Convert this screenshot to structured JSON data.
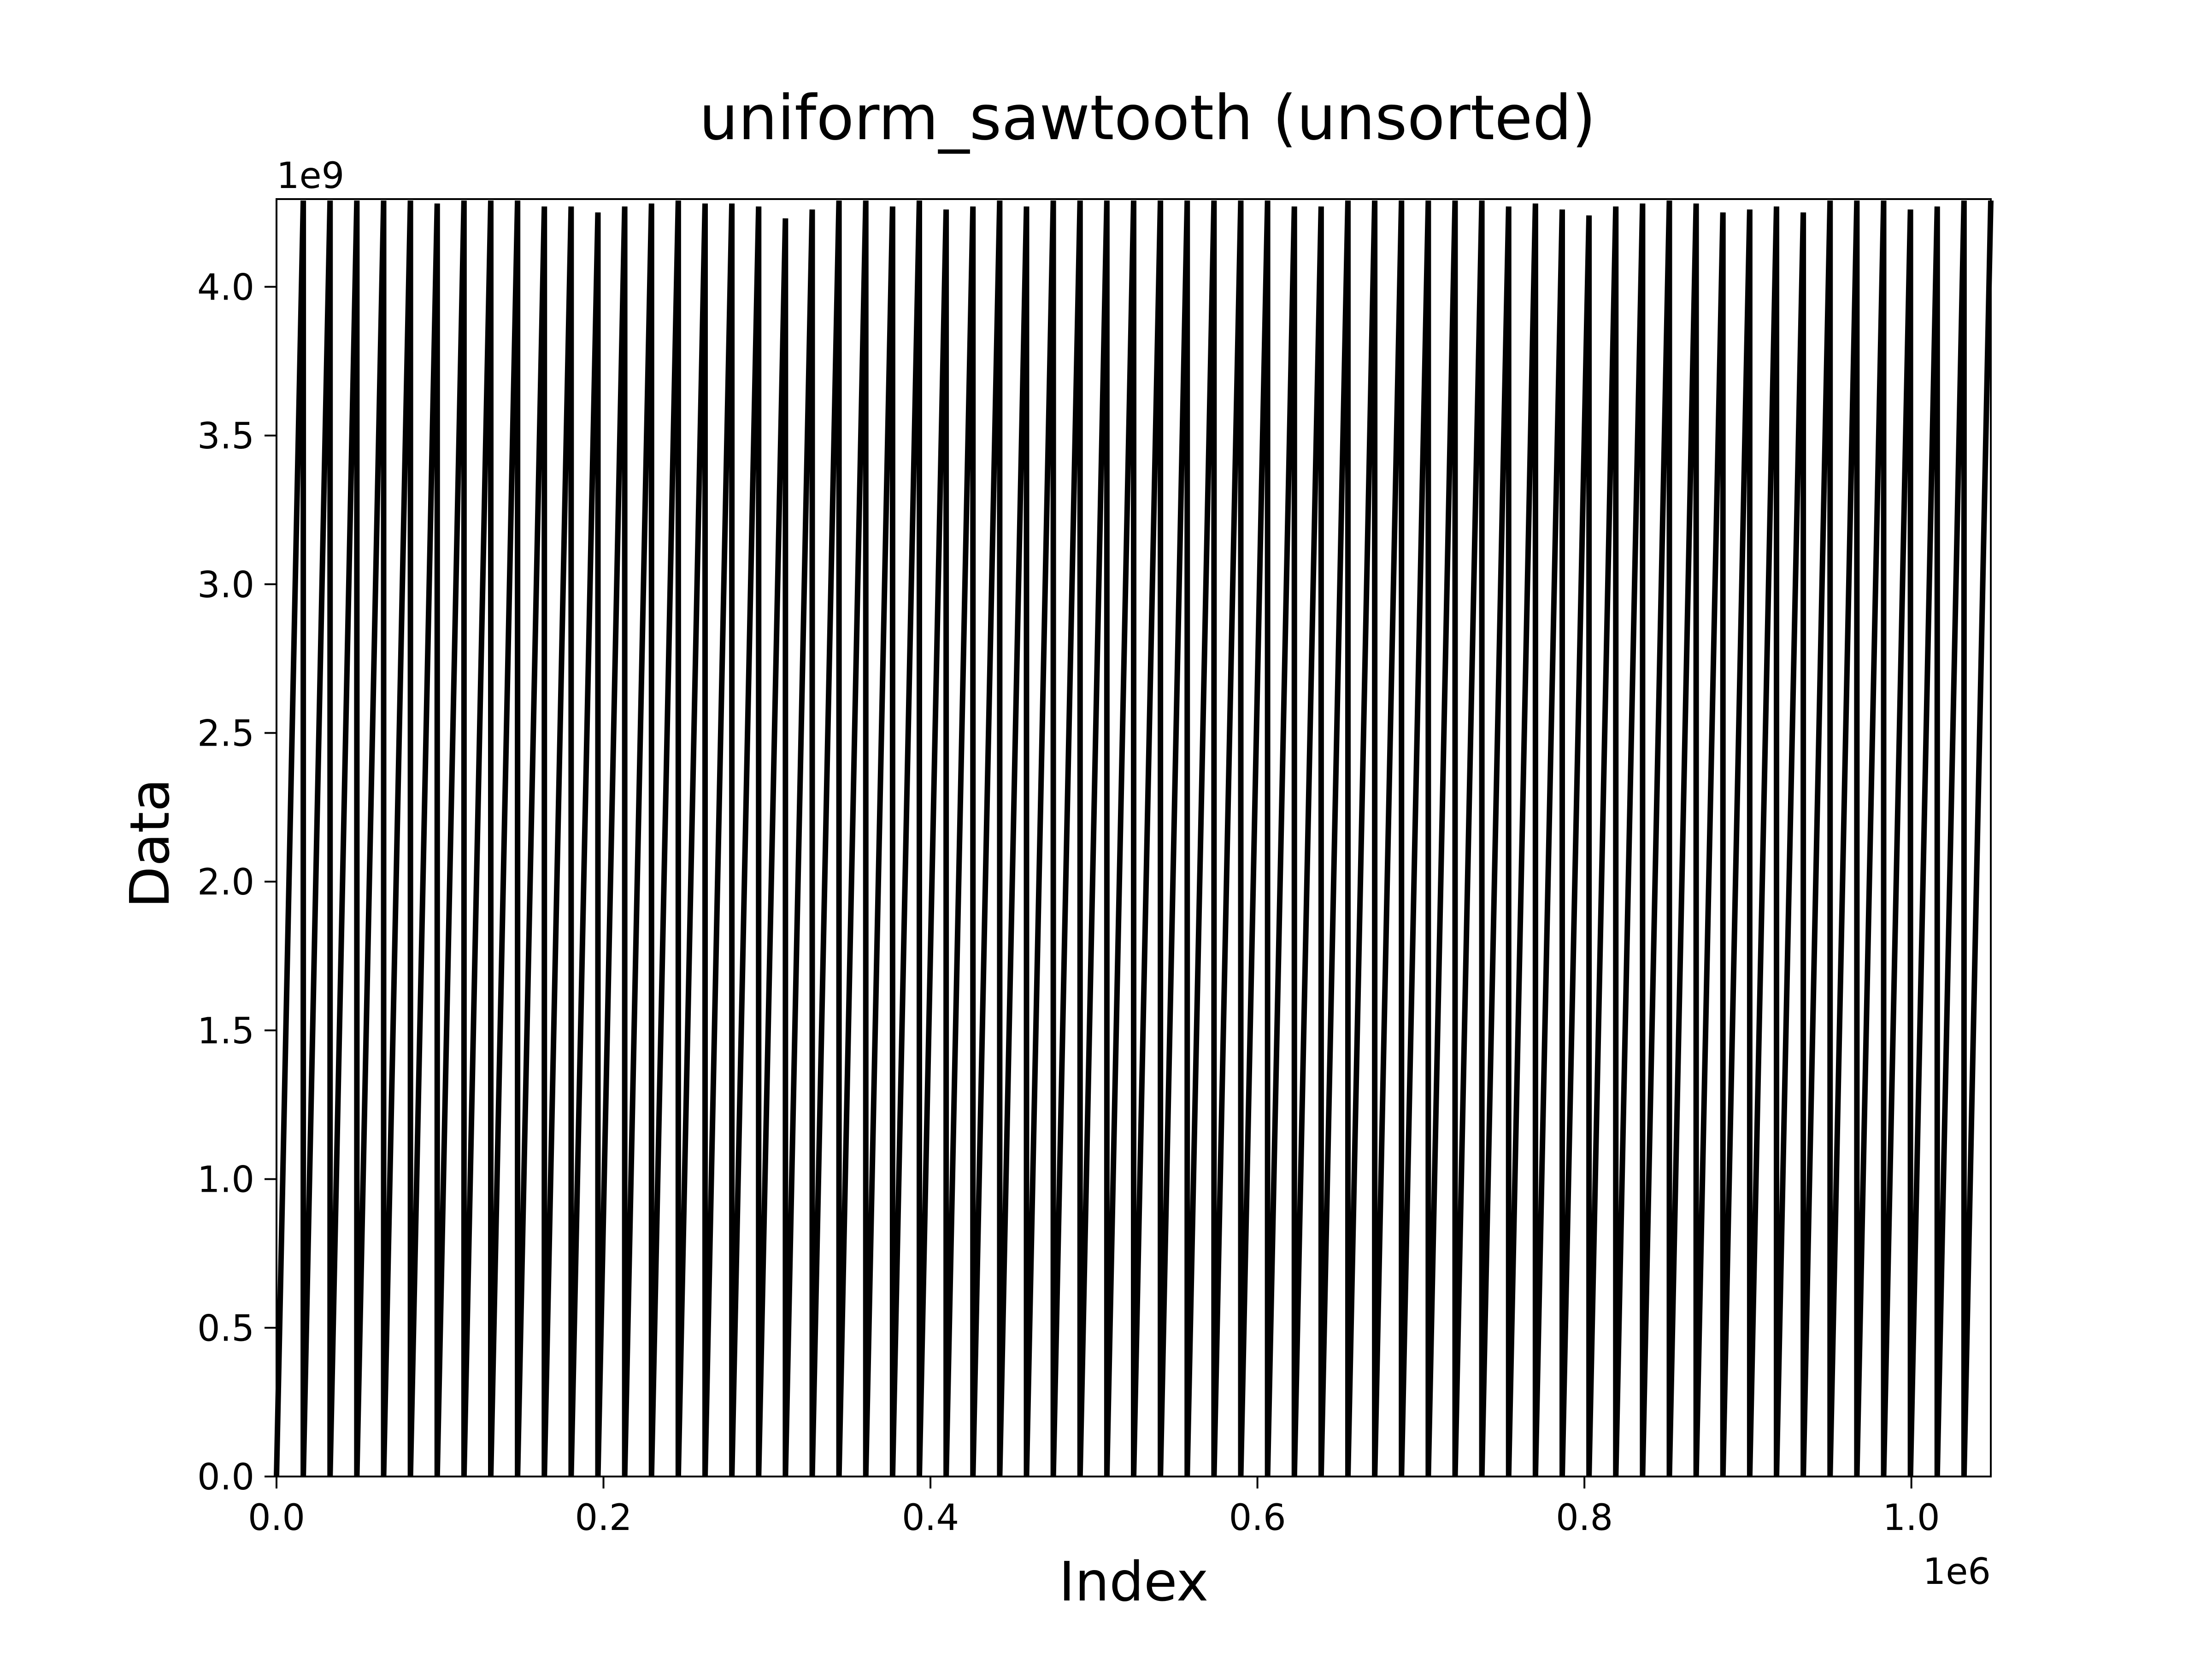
{
  "chart_data": {
    "type": "line",
    "title": "uniform_sawtooth (unsorted)",
    "xlabel": "Index",
    "ylabel": "Data",
    "x_multiplier_label": "1e6",
    "y_multiplier_label": "1e9",
    "xlim": [
      0,
      1048576
    ],
    "ylim": [
      0,
      4294967295
    ],
    "xticks": [
      0,
      200000,
      400000,
      600000,
      800000,
      1000000
    ],
    "xtick_labels": [
      "0.0",
      "0.2",
      "0.4",
      "0.6",
      "0.8",
      "1.0"
    ],
    "yticks": [
      0,
      500000000,
      1000000000,
      1500000000,
      2000000000,
      2500000000,
      3000000000,
      3500000000,
      4000000000
    ],
    "ytick_labels": [
      "0.0",
      "0.5",
      "1.0",
      "1.5",
      "2.0",
      "2.5",
      "3.0",
      "3.5",
      "4.0"
    ],
    "grid": false,
    "legend": "none",
    "line_color": "#000000",
    "series": [
      {
        "period": 16384,
        "teeth": 64,
        "peaks": [
          4290000000.0,
          4290000000.0,
          4290000000.0,
          4290000000.0,
          4290000000.0,
          4280000000.0,
          4290000000.0,
          4290000000.0,
          4290000000.0,
          4270000000.0,
          4270000000.0,
          4250000000.0,
          4270000000.0,
          4280000000.0,
          4290000000.0,
          4280000000.0,
          4280000000.0,
          4270000000.0,
          4230000000.0,
          4260000000.0,
          4290000000.0,
          4290000000.0,
          4270000000.0,
          4290000000.0,
          4260000000.0,
          4270000000.0,
          4290000000.0,
          4270000000.0,
          4290000000.0,
          4290000000.0,
          4290000000.0,
          4290000000.0,
          4290000000.0,
          4290000000.0,
          4290000000.0,
          4290000000.0,
          4290000000.0,
          4270000000.0,
          4270000000.0,
          4290000000.0,
          4290000000.0,
          4290000000.0,
          4290000000.0,
          4290000000.0,
          4290000000.0,
          4270000000.0,
          4280000000.0,
          4260000000.0,
          4240000000.0,
          4270000000.0,
          4280000000.0,
          4290000000.0,
          4280000000.0,
          4250000000.0,
          4260000000.0,
          4270000000.0,
          4250000000.0,
          4290000000.0,
          4290000000.0,
          4290000000.0,
          4260000000.0,
          4270000000.0,
          4290000000.0,
          4290000000.0
        ]
      }
    ]
  }
}
